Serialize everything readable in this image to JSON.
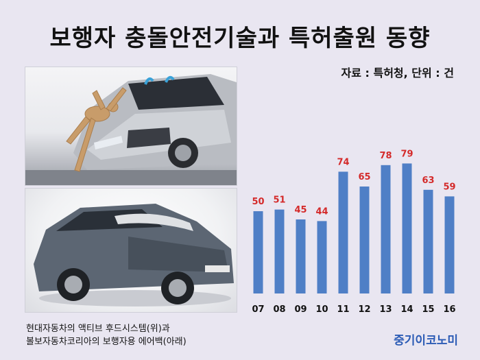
{
  "header": {
    "title": "보행자 충돌안전기술과 특허출원 동향",
    "source": "자료 : 특허청, 단위 : 건"
  },
  "caption": {
    "line1": "현대자동차의 액티브 후드시스템(위)과",
    "line2": "볼보자동차코리아의 보행자용 에어백(아래)"
  },
  "brand": "중기이코노미",
  "colors": {
    "bar": "#4f7fc6",
    "value_label": "#d42a2a",
    "background": "#e9e6f1"
  },
  "chart_data": {
    "type": "bar",
    "categories": [
      "07",
      "08",
      "09",
      "10",
      "11",
      "12",
      "13",
      "14",
      "15",
      "16"
    ],
    "values": [
      50,
      51,
      45,
      44,
      74,
      65,
      78,
      79,
      63,
      59
    ],
    "title": "",
    "xlabel": "",
    "ylabel": "",
    "ylim": [
      0,
      100
    ],
    "grid": false,
    "legend": "none"
  }
}
